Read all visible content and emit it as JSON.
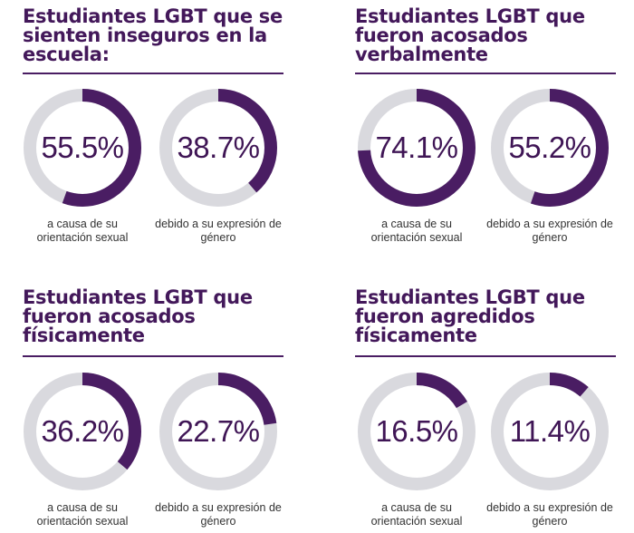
{
  "colors": {
    "accent": "#4a1d63",
    "track": "#d9d9de",
    "text": "#3f1555"
  },
  "chart_data": [
    {
      "type": "donut",
      "title": "Estudiantes LGBT que se sienten inseguros en la escuela:",
      "items": [
        {
          "value": 55.5,
          "label": "55.5%",
          "caption": "a causa de su orientación sexual"
        },
        {
          "value": 38.7,
          "label": "38.7%",
          "caption": "debido a su expresión de género"
        }
      ]
    },
    {
      "type": "donut",
      "title": "Estudiantes LGBT que fueron acosados verbalmente",
      "items": [
        {
          "value": 74.1,
          "label": "74.1%",
          "caption": "a causa de su orientación sexual"
        },
        {
          "value": 55.2,
          "label": "55.2%",
          "caption": "debido a su expresión de género"
        }
      ]
    },
    {
      "type": "donut",
      "title": "Estudiantes LGBT que fueron acosados físicamente",
      "items": [
        {
          "value": 36.2,
          "label": "36.2%",
          "caption": "a causa de su orientación sexual"
        },
        {
          "value": 22.7,
          "label": "22.7%",
          "caption": "debido a su expresión de género"
        }
      ]
    },
    {
      "type": "donut",
      "title": "Estudiantes LGBT que fueron agredidos físicamente",
      "items": [
        {
          "value": 16.5,
          "label": "16.5%",
          "caption": "a causa de su orientación sexual"
        },
        {
          "value": 11.4,
          "label": "11.4%",
          "caption": "debido a su expresión de género"
        }
      ]
    }
  ]
}
